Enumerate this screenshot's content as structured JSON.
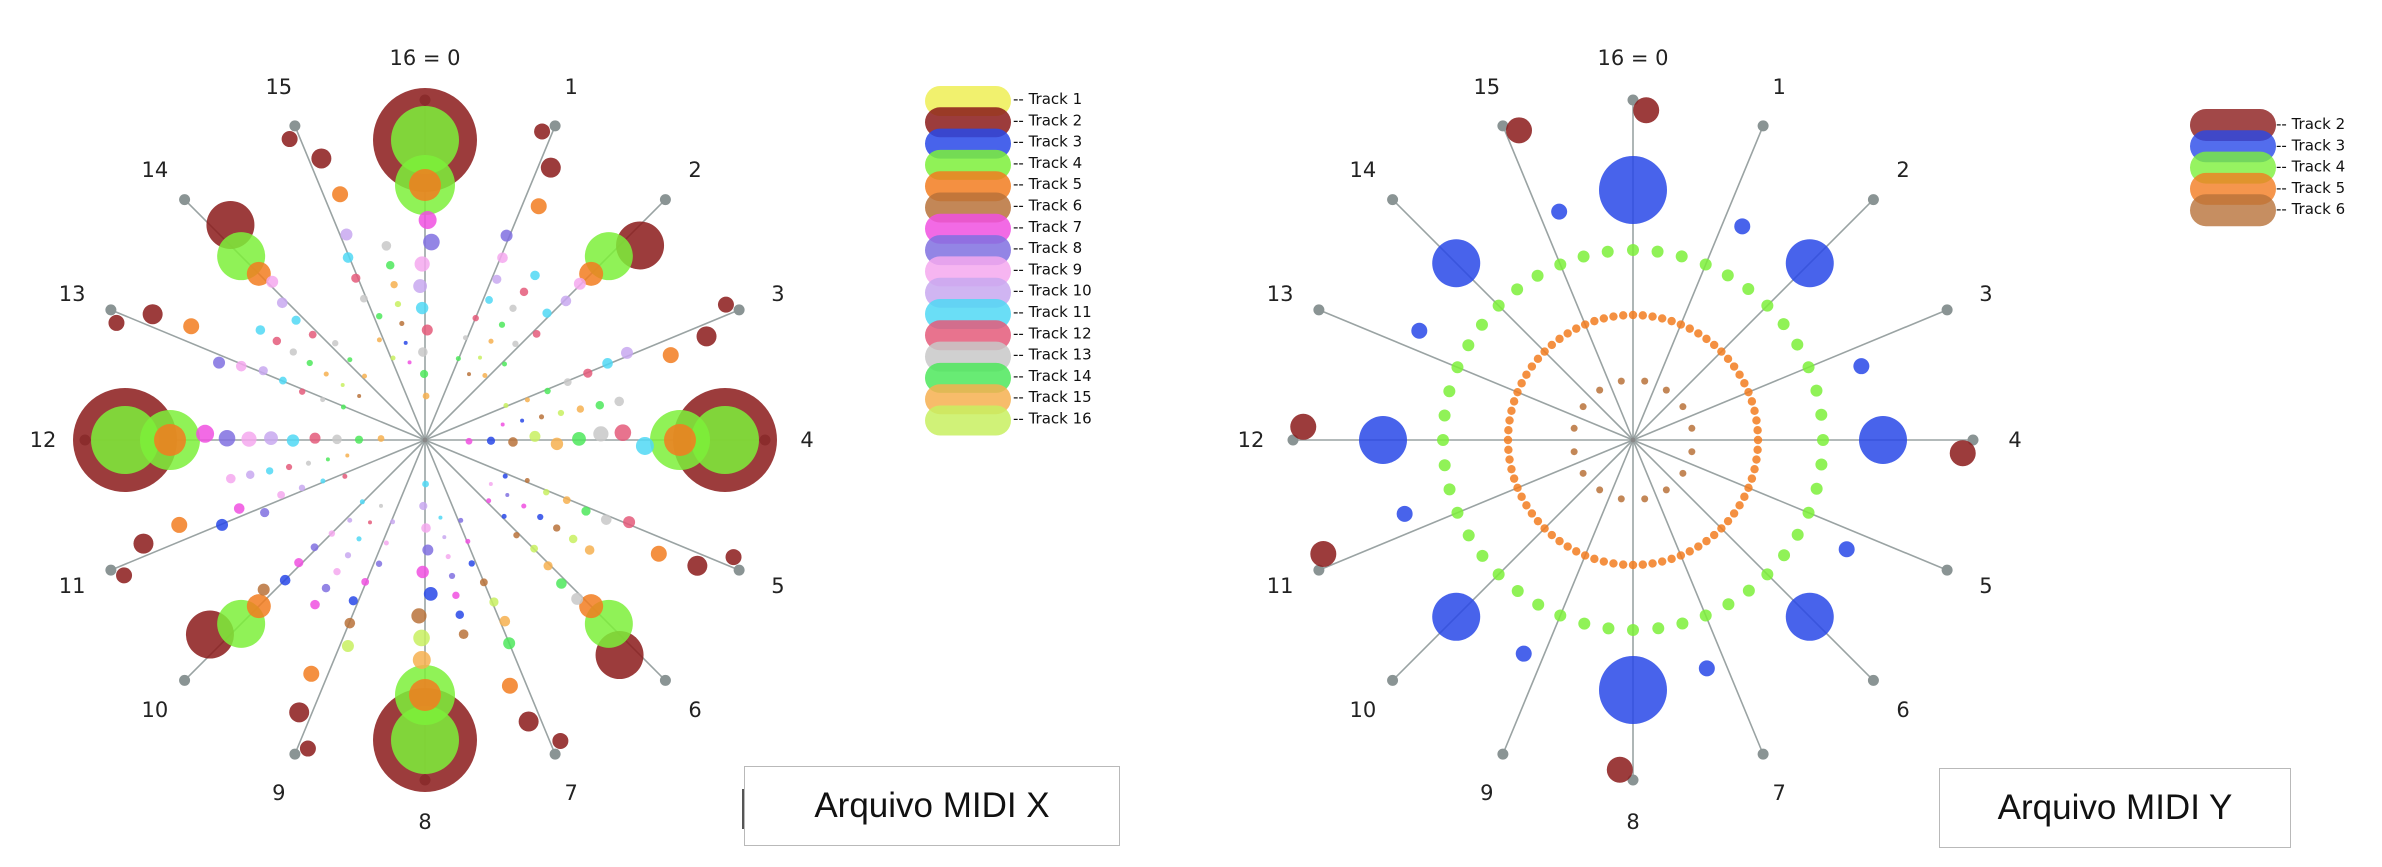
{
  "figure": {
    "left_caption": "Arquivo MIDI X",
    "right_caption": "Arquivo MIDI Y"
  },
  "chart_data": [
    {
      "type": "scatter",
      "subtype": "radial-pitch-class-plot",
      "title": "",
      "caption": "Arquivo MIDI X",
      "spoke_labels": [
        "16 = 0",
        "1",
        "2",
        "3",
        "4",
        "5",
        "6",
        "7",
        "8",
        "9",
        "10",
        "11",
        "12",
        "13",
        "14",
        "15"
      ],
      "legend_position": "right",
      "grid": false,
      "series": [
        {
          "name": "Track 1",
          "color": "#eeee55",
          "points": []
        },
        {
          "name": "Track 2",
          "color": "#8b1a1a",
          "points": []
        },
        {
          "name": "Track 3",
          "color": "#2848e8",
          "points": []
        },
        {
          "name": "Track 4",
          "color": "#7cf03a",
          "points": []
        },
        {
          "name": "Track 5",
          "color": "#f27c20",
          "points": []
        },
        {
          "name": "Track 6",
          "color": "#b8723a",
          "points": []
        },
        {
          "name": "Track 7",
          "color": "#f050e0",
          "points": []
        },
        {
          "name": "Track 8",
          "color": "#8070e0",
          "points": []
        },
        {
          "name": "Track 9",
          "color": "#f4a8ee",
          "points": []
        },
        {
          "name": "Track 10",
          "color": "#c8a8f0",
          "points": []
        },
        {
          "name": "Track 11",
          "color": "#50d8f4",
          "points": []
        },
        {
          "name": "Track 12",
          "color": "#e45a7a",
          "points": []
        },
        {
          "name": "Track 13",
          "color": "#c8c8c8",
          "points": []
        },
        {
          "name": "Track 14",
          "color": "#4ee85c",
          "points": []
        },
        {
          "name": "Track 15",
          "color": "#f6b050",
          "points": []
        },
        {
          "name": "Track 16",
          "color": "#c8f060",
          "points": []
        }
      ]
    },
    {
      "type": "scatter",
      "subtype": "radial-pitch-class-plot",
      "title": "",
      "caption": "Arquivo MIDI Y",
      "spoke_labels": [
        "16 = 0",
        "1",
        "2",
        "3",
        "4",
        "5",
        "6",
        "7",
        "8",
        "9",
        "10",
        "11",
        "12",
        "13",
        "14",
        "15"
      ],
      "legend_position": "right",
      "grid": false,
      "series": [
        {
          "name": "Track 2",
          "color": "#8b1a1a",
          "points": []
        },
        {
          "name": "Track 3",
          "color": "#2848e8",
          "points": []
        },
        {
          "name": "Track 4",
          "color": "#7cf03a",
          "points": []
        },
        {
          "name": "Track 5",
          "color": "#f27c20",
          "points": []
        },
        {
          "name": "Track 6",
          "color": "#b8723a",
          "points": []
        }
      ]
    }
  ]
}
